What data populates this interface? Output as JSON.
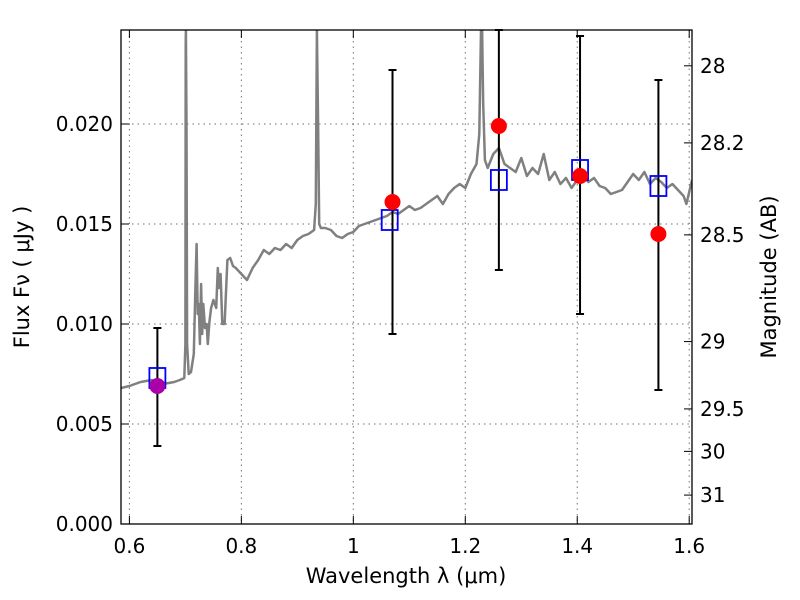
{
  "chart_data": {
    "type": "scatter",
    "xlabel": "Wavelength  λ (μm)",
    "ylabel": "Flux  Fν  ( μJy )",
    "ylabel_right": "Magnitude (AB)",
    "xlim": [
      0.585,
      1.605
    ],
    "ylim": [
      0.0,
      0.0247
    ],
    "x_ticks": [
      0.6,
      0.8,
      1.0,
      1.2,
      1.4,
      1.6
    ],
    "x_tick_labels": [
      "0.6",
      "0.8",
      "1",
      "1.2",
      "1.4",
      "1.6"
    ],
    "y_ticks": [
      0.0,
      0.005,
      0.01,
      0.015,
      0.02
    ],
    "y_tick_labels": [
      "0.000",
      "0.005",
      "0.010",
      "0.015",
      "0.020"
    ],
    "right_ticks": [
      {
        "mag": 28,
        "label": "28"
      },
      {
        "mag": 28.2,
        "label": "28.2"
      },
      {
        "mag": 28.5,
        "label": "28.5"
      },
      {
        "mag": 29,
        "label": "29"
      },
      {
        "mag": 29.5,
        "label": "29.5"
      },
      {
        "mag": 30,
        "label": "30"
      },
      {
        "mag": 31,
        "label": "31"
      }
    ],
    "grid": true,
    "colors": {
      "spectrum": "#808080",
      "observed": "#ff0000",
      "observed_first": "#aa00aa",
      "model": "#0000ff",
      "errorbar": "#000000"
    },
    "spectrum": {
      "x": [
        0.585,
        0.6,
        0.62,
        0.64,
        0.66,
        0.68,
        0.69,
        0.698,
        0.7,
        0.7005,
        0.701,
        0.702,
        0.703,
        0.706,
        0.71,
        0.715,
        0.718,
        0.72,
        0.722,
        0.724,
        0.726,
        0.728,
        0.73,
        0.732,
        0.735,
        0.738,
        0.74,
        0.743,
        0.746,
        0.75,
        0.755,
        0.758,
        0.76,
        0.763,
        0.766,
        0.77,
        0.775,
        0.78,
        0.785,
        0.79,
        0.8,
        0.81,
        0.82,
        0.83,
        0.84,
        0.85,
        0.86,
        0.87,
        0.88,
        0.89,
        0.9,
        0.91,
        0.92,
        0.93,
        0.933,
        0.935,
        0.937,
        0.939,
        0.942,
        0.95,
        0.96,
        0.97,
        0.98,
        0.99,
        1.0,
        1.01,
        1.02,
        1.03,
        1.04,
        1.05,
        1.06,
        1.07,
        1.08,
        1.09,
        1.1,
        1.11,
        1.12,
        1.13,
        1.14,
        1.15,
        1.16,
        1.17,
        1.18,
        1.19,
        1.2,
        1.21,
        1.22,
        1.225,
        1.228,
        1.23,
        1.232,
        1.235,
        1.24,
        1.25,
        1.26,
        1.27,
        1.28,
        1.29,
        1.3,
        1.31,
        1.32,
        1.33,
        1.34,
        1.35,
        1.36,
        1.37,
        1.38,
        1.39,
        1.4,
        1.41,
        1.42,
        1.43,
        1.44,
        1.45,
        1.46,
        1.47,
        1.48,
        1.49,
        1.5,
        1.51,
        1.52,
        1.53,
        1.54,
        1.55,
        1.56,
        1.57,
        1.58,
        1.59,
        1.595,
        1.605
      ],
      "y": [
        0.0068,
        0.0069,
        0.0071,
        0.0072,
        0.007,
        0.0071,
        0.0072,
        0.0073,
        0.009,
        0.024,
        0.0247,
        0.02,
        0.009,
        0.0075,
        0.0076,
        0.0085,
        0.012,
        0.014,
        0.0105,
        0.011,
        0.009,
        0.012,
        0.0095,
        0.011,
        0.0098,
        0.01,
        0.009,
        0.0101,
        0.0108,
        0.0112,
        0.0108,
        0.0128,
        0.0118,
        0.0125,
        0.01,
        0.01,
        0.0132,
        0.0133,
        0.0129,
        0.0128,
        0.0125,
        0.0122,
        0.0128,
        0.0132,
        0.0137,
        0.0135,
        0.0138,
        0.0137,
        0.014,
        0.0138,
        0.0142,
        0.0144,
        0.0145,
        0.0147,
        0.016,
        0.0247,
        0.02,
        0.015,
        0.0148,
        0.0148,
        0.0147,
        0.0144,
        0.0143,
        0.0145,
        0.0146,
        0.0149,
        0.015,
        0.0151,
        0.0152,
        0.0153,
        0.0154,
        0.0156,
        0.0155,
        0.0157,
        0.0159,
        0.0157,
        0.0158,
        0.016,
        0.0162,
        0.0164,
        0.016,
        0.0165,
        0.0168,
        0.017,
        0.0168,
        0.0175,
        0.018,
        0.0195,
        0.0247,
        0.0247,
        0.021,
        0.0182,
        0.0178,
        0.0185,
        0.0188,
        0.018,
        0.0178,
        0.0176,
        0.0183,
        0.0174,
        0.0178,
        0.0175,
        0.0185,
        0.0172,
        0.0176,
        0.017,
        0.0173,
        0.0168,
        0.0172,
        0.0174,
        0.0171,
        0.0173,
        0.0169,
        0.0168,
        0.0165,
        0.0166,
        0.0167,
        0.0171,
        0.0175,
        0.0172,
        0.0176,
        0.017,
        0.0173,
        0.0171,
        0.0168,
        0.017,
        0.0167,
        0.0164,
        0.016,
        0.0172
      ]
    },
    "observed": [
      {
        "x": 0.65,
        "y": 0.0069,
        "err_low": 0.0039,
        "err_high": 0.0098
      },
      {
        "x": 1.07,
        "y": 0.0161,
        "err_low": 0.0095,
        "err_high": 0.0227
      },
      {
        "x": 1.26,
        "y": 0.0199,
        "err_low": 0.0127,
        "err_high": 0.0247
      },
      {
        "x": 1.405,
        "y": 0.0174,
        "err_low": 0.0105,
        "err_high": 0.0244
      },
      {
        "x": 1.545,
        "y": 0.0145,
        "err_low": 0.0067,
        "err_high": 0.0222
      }
    ],
    "model": [
      {
        "x": 0.65,
        "y": 0.0073
      },
      {
        "x": 1.065,
        "y": 0.0152
      },
      {
        "x": 1.26,
        "y": 0.0172
      },
      {
        "x": 1.405,
        "y": 0.0177
      },
      {
        "x": 1.545,
        "y": 0.0169
      }
    ]
  }
}
